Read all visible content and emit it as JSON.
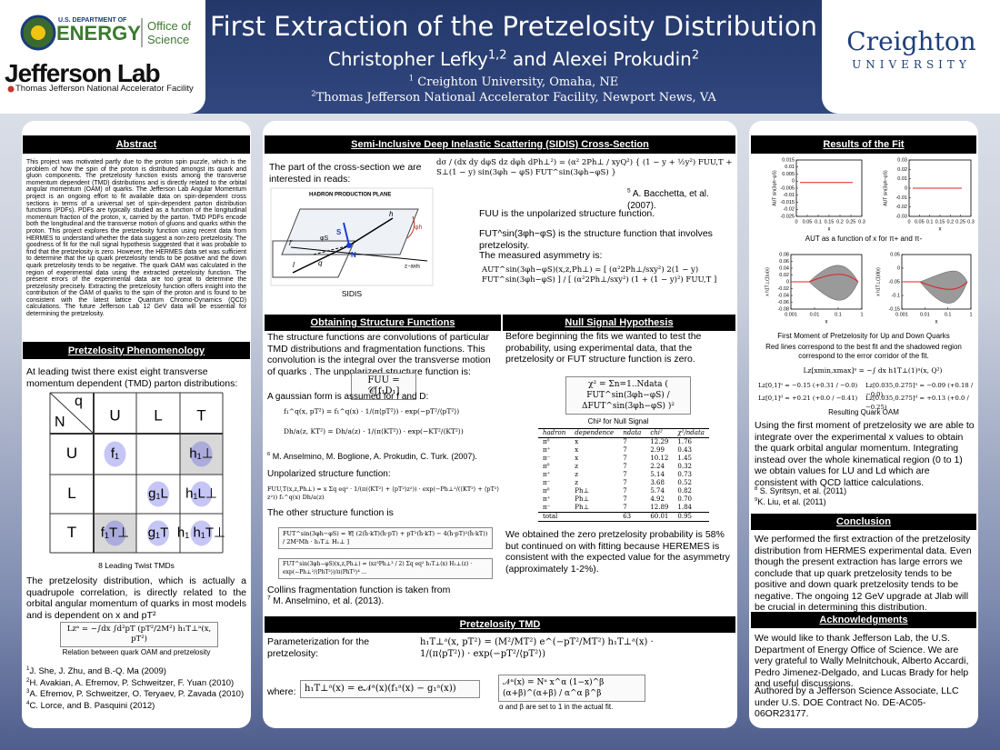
{
  "header": {
    "title": "First Extraction of the Pretzelosity Distribution",
    "authors": [
      {
        "name": "Christopher Lefky",
        "sup": "1,2"
      },
      {
        "name": " and Alexei Prokudin",
        "sup": "2"
      }
    ],
    "affiliations": [
      {
        "sup": "1",
        "text": " Creighton University, Omaha, NE"
      },
      {
        "sup": "2",
        "text": "Thomas Jefferson National Accelerator Facility, Newport News, VA"
      }
    ],
    "logos": {
      "doe_line1": "U.S. DEPARTMENT OF",
      "doe_line2": "ENERGY",
      "office1": "Office of",
      "office2": "Science",
      "jlab": "Jefferson Lab",
      "jlab_sub": "Thomas Jefferson National Accelerator Facility",
      "creighton": "Creighton",
      "university": "UNIVERSITY"
    }
  },
  "abstract": {
    "heading": "Abstract",
    "text": "This project was motivated partly due to the proton spin puzzle, which is the problem of how the spin of the proton is distributed amongst its quark and gluon components.  The pretzelosity function exists among the transverse momentum dependent (TMD) distributions and is directly related to the orbital angular momentum (OAM) of quarks.  The Jefferson Lab Angular Momentum project is an ongoing effort to fit available data on spin-dependent cross sections in terms of a universal set of spin-dependent parton distribution functions (PDFs).  PDFs are typically studied as a function of the longitudinal momentum fraction of the proton, x, carried by the parton.  TMD PDFs encode both the longitudinal and the transverse motion of gluons and quarks within the proton.  This project explores the pretzelosity function using recent data from HERMES to understand whether the data suggest a non-zero pretzelosity.  The goodness of fit for the null signal hypothesis suggested that it was probable to find that the pretzelosity is zero.  However, the HERMES data set was sufficient to determine that the up quark pretzelosity tends to be positive and the down quark pretzelosity tends to be negative.  The quark OAM was calculated in the region of experimental data using the extracted pretzelosity function.  The present errors of the experimental data are too great to determine the pretzelosity precisely.   Extracting the pretzelosity function offers insight into the contribution of the OAM of quarks to the spin of the proton and is found to be consistent with the latest lattice Quantum Chromo-Dynamics (QCD) calculations.  The future Jefferson Lab 12 GeV data will be essential for determining the pretzelosity."
  },
  "phenomenology": {
    "heading": "Pretzelosity Phenomenology",
    "intro": "At leading twist there exist eight transverse momentum dependent (TMD) parton distributions:",
    "tmd_table": {
      "corner_q": "q",
      "corner_N": "N",
      "columns": [
        "U",
        "L",
        "T"
      ],
      "rows": [
        {
          "label": "U",
          "cells": [
            "f₁",
            null,
            "h₁⊥"
          ]
        },
        {
          "label": "L",
          "cells": [
            null,
            "g₁L",
            "h₁L⊥"
          ]
        },
        {
          "label": "T",
          "cells": [
            "f₁T⊥",
            "g₁T",
            "h₁ h₁T⊥"
          ]
        }
      ]
    },
    "caption": "8 Leading Twist TMDs",
    "paragraph": "The pretzelosity distribution, which is actually a quadrupole correlation, is directly related to the orbital angular momentum of quarks in most models and is dependent on x and pT²",
    "formula": "Lzᵃ = −∫dx ∫d²pT (pT²/2M²) h₁T⊥ᵃ(x, pT²)",
    "formula_caption": "Relation between quark OAM and pretzelosity",
    "references": [
      {
        "sup": "1",
        "text": "J. She, J. Zhu, and B.-Q. Ma (2009)"
      },
      {
        "sup": "2",
        "text": "H. Avakian, A. Efremov, P. Schweitzer, F. Yuan (2010)"
      },
      {
        "sup": "3",
        "text": "A. Efremov, P. Schweitzer, O. Teryaev, P. Zavada (2010)"
      },
      {
        "sup": "4",
        "text": "C. Lorce, and B. Pasquini (2012)"
      }
    ]
  },
  "sidis": {
    "heading": "Semi-Inclusive Deep Inelastic Scattering (SIDIS) Cross-Section",
    "intro": "The part of the cross-section we are interested in reads:",
    "formula": "dσ / (dx dy dφS dz dφh dPh⊥²) = (α² 2Ph⊥ / xyQ²) { (1 − y + ½y²) FUU,T + S⊥(1 − y) sin(3φh − φS) FUT^sin(3φh−φS) }",
    "ref": {
      "sup": "5",
      "text": " A. Bacchetta, et al. (2007)."
    },
    "fuu_text": "FUU is the unpolarized structure function.",
    "fut_text": "FUT^sin(3φh−φS) is the structure function that involves pretzelosity.",
    "asym_text": "The measured asymmetry is:",
    "asym_formula": "AUT^sin(3φh−φS)(x,z,Ph⊥) = [ (α²2Ph⊥/sxy²) 2(1 − y) FUT^sin(3φh−φS) ] / [ (α²2Ph⊥/sxy²) (1 + (1 − y)²) FUU,T ]",
    "figure_caption": "SIDIS",
    "figure_labels": {
      "plane": "HADRON PRODUCTION PLANE",
      "zaxis": "z−axis",
      "lepton": "l",
      "lepton_out": "l′",
      "photon": "q",
      "spin": "S",
      "hadron": "h",
      "nucleon": "N",
      "phi_h": "φh",
      "phi_s": "φS"
    }
  },
  "structure": {
    "heading": "Obtaining Structure Functions",
    "text": "The structure functions are convolutions of particular TMD distributions and fragmentation functions.  This convolution is the integral over the transverse motion of quarks .  The unpolarized structure function is:",
    "formula_fuu": "FUU = 𝒞[f₁D₁]",
    "gauss_text": "A gaussian form is assumed for f and D:",
    "formula_f": "f₁^q(x, pT²) = f₁^q(x) · 1/(π⟨pT²⟩) · exp(−pT²/⟨pT²⟩)",
    "formula_d": "Dh/a(z, KT²) = Dh/a(z) · 1/(π⟨KT²⟩) · exp(−KT²/⟨KT²⟩)",
    "ref6": {
      "sup": "6",
      "text": " M. Anselmino, M. Boglione, A. Prokudin, C. Turk. (2007)."
    },
    "unpol_text": "Unpolarized structure function:",
    "formula_unpol": "FUU,T(x,z,Ph⊥) = x Σq eq² · 1/(π(⟨KT²⟩ + ⟨pT²⟩z²)) · exp(−Ph⊥²/(⟨KT²⟩ + ⟨pT²⟩z²)) f₁^q(x) Dh/a(z)",
    "other_text": "The other structure function is",
    "formula_other": "FUT^sin(3φh−φS) = 𝒞[ (2(ĥ·kT)(ĥ·pT) + pT²(ĥ·kT) − 4(ĥ·pT)²(ĥ·kT)) / 2M²Mh · h₁T⊥ H₁⊥ ]",
    "formula_other2": "FUT^sin(3φh−φS)(x,z,Ph⊥) = (xz³Ph⊥³ / 2) Σq eq² h₁T⊥(x) H₁⊥(z) · exp(−Ph⊥²/⟨PhT²⟩)/π⟨PhT²⟩⁴ ...",
    "collins_text": "Collins fragmentation function is taken from",
    "ref7": {
      "sup": "7",
      "text": " M. Anselmino, et al. (2013)."
    }
  },
  "null_signal": {
    "heading": "Null Signal Hypothesis",
    "text": "Before beginning the fits we wanted to test the probability, using experimental data, that the pretzelosity or FUT structure function is zero.",
    "formula": "χ² = Σn=1..Ndata ( FUT^sin(3φh−φS) / ΔFUT^sin(3φh−φS) )²",
    "formula_caption": "Chi² for Null Signal",
    "table": {
      "columns": [
        "hadron",
        "dependence",
        "ndata",
        "chi²",
        "χ²/ndata"
      ],
      "rows": [
        [
          "π⁰",
          "x",
          "7",
          "12.29",
          "1.76"
        ],
        [
          "π⁺",
          "x",
          "7",
          "2.99",
          "0.43"
        ],
        [
          "π⁻",
          "x",
          "7",
          "10.12",
          "1.45"
        ],
        [
          "π⁰",
          "z",
          "7",
          "2.24",
          "0.32"
        ],
        [
          "π⁺",
          "z",
          "7",
          "5.14",
          "0.73"
        ],
        [
          "π⁻",
          "z",
          "7",
          "3.68",
          "0.52"
        ],
        [
          "π⁰",
          "Ph⊥",
          "7",
          "5.74",
          "0.82"
        ],
        [
          "π⁺",
          "Ph⊥",
          "7",
          "4.92",
          "0.70"
        ],
        [
          "π⁻",
          "Ph⊥",
          "7",
          "12.89",
          "1.84"
        ],
        [
          "total",
          null,
          "63",
          "60.01",
          "0.95"
        ]
      ]
    },
    "conclusion": "We obtained the zero pretzelosity probability is 58% but continued on with fitting because HEREMES is consistent with the expected value for the asymmetry (approximately 1-2%)."
  },
  "tmd": {
    "heading": "Pretzelosity TMD",
    "param_text": "Parameterization for the pretzelosity:",
    "formula": "h₁T⊥ᵃ(x, pT²) = (M²/MT²) e^(−pT²/MT²) h₁T⊥ᵃ(x) · 1/(π⟨pT²⟩) · exp(−pT²/⟨pT²⟩)",
    "where": "where:",
    "formula_h": "h₁T⊥ᵃ(x) = e𝒩ᵃ(x)(f₁ᵃ(x) − g₁ᵃ(x))",
    "formula_n": "𝒩ᵃ(x) = Nᵃ x^α (1−x)^β (α+β)^(α+β) / α^α β^β",
    "note": "α and β are set to 1 in the actual fit."
  },
  "results": {
    "heading": "Results of the Fit",
    "plots": [
      {
        "ylabel": "AUT sin(3φh−φS)",
        "xlabel": "x",
        "yticks": [
          0.015,
          0.01,
          0.005,
          0,
          -0.005,
          -0.01,
          -0.015,
          -0.02,
          -0.025
        ],
        "xticks": [
          0,
          0.05,
          0.1,
          0.15,
          0.2,
          0.25,
          0.3
        ]
      },
      {
        "ylabel": "AUT sin(3φh−φS)",
        "xlabel": "x",
        "yticks": [
          0.03,
          0.02,
          0.01,
          0,
          -0.01,
          -0.02,
          -0.03
        ],
        "xticks": [
          0,
          0.05,
          0.1,
          0.15,
          0.2,
          0.25,
          0.3
        ]
      },
      {
        "ylabel": "x h1T⊥(1)u(x)",
        "xlabel": "x",
        "yticks": [
          0.08,
          0.06,
          0.04,
          0.02,
          0,
          -0.02,
          -0.04,
          -0.06,
          -0.08
        ],
        "xticks": [
          0.001,
          0.01,
          0.1,
          1
        ]
      },
      {
        "ylabel": "x h1T⊥(1)d(x)",
        "xlabel": "x",
        "yticks": [
          0.05,
          0,
          -0.05,
          -0.1,
          -0.15
        ],
        "xticks": [
          0.001,
          0.01,
          0.1,
          1
        ]
      }
    ],
    "caption_asym": "AUT as a function of x for π+ and π-",
    "caption_moment": "First Moment of Pretzelosity for Up and Down Quarks",
    "caption_red": "Red lines correspond to the best fit and the shadowed region correspond to the error corridor of the fit.",
    "oam_formula": "Lz[xmin,xmax]ᵃ = −∫ dx h1T⊥(1)ᵃ(x, Q²)",
    "oam_values": [
      "Lz[0,1]ᵘ = −0.15 (+0.31 / −0.0)",
      "Lz[0.035,0.275]ᵘ = −0.09 (+0.18 / −0.0)",
      "Lz[0,1]ᵈ = +0.21 (+0.0 / −0.41)",
      "Lz[0.035,0.275]ᵈ = +0.13 (+0.0 / −0.25)"
    ],
    "oam_caption": "Resulting Quark OAM",
    "text": "Using the first moment of pretzelosity we are able to integrate over the experimental x values to obtain the quark orbital angular momentum.  Integrating instead over the whole kinematical region (0 to 1) we obtain values for LU and Ld which are consistent with QCD lattice calculations.",
    "references": [
      {
        "sup": "8",
        "text": " S. Syritsyn, et al. (2011)"
      },
      {
        "sup": "9",
        "text": "K. Liu, et al. (2011)"
      }
    ]
  },
  "conclusion": {
    "heading": "Conclusion",
    "text": "We performed the first extraction of the pretzelosity distribution from HERMES experimental data. Even though the present extraction has large errors we conclude that up quark pretzelosity tends to be positive and down quark pretzelosity tends to be negative.  The ongoing 12 GeV upgrade at Jlab will be crucial in determining this distribution."
  },
  "acknowledgments": {
    "heading": "Acknowledgments",
    "text1": "We would like to thank Jefferson Lab, the U.S. Department of Energy Office of Science.  We are very grateful to Wally Melnitchouk, Alberto Accardi, Pedro Jimenez-Delgado, and Lucas Brady for help and useful discussions.",
    "text2": "Authored by a Jefferson Science Associate, LLC under U.S. DOE Contract No. DE-AC05-06OR23177."
  }
}
